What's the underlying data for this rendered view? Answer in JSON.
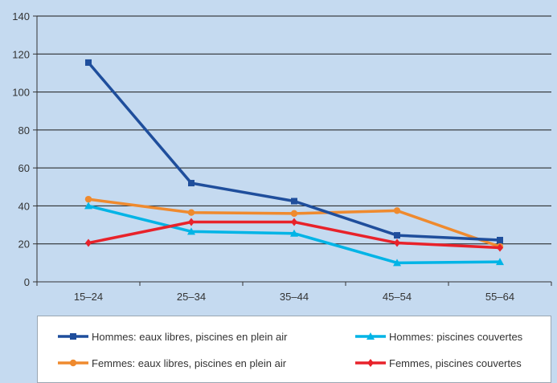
{
  "chart_data": {
    "type": "line",
    "title": "",
    "xlabel": "",
    "ylabel": "",
    "categories": [
      "15–24",
      "25–34",
      "35–44",
      "45–54",
      "55–64"
    ],
    "ylim": [
      0,
      140
    ],
    "yticks": [
      0,
      20,
      40,
      60,
      80,
      100,
      120,
      140
    ],
    "grid": "horizontal",
    "legend_position": "bottom",
    "series": [
      {
        "name": "Hommes: eaux libres, piscines en plein air",
        "color": "#1f4e9c",
        "marker": "square",
        "values": [
          115.5,
          52,
          42.5,
          24.5,
          22
        ]
      },
      {
        "name": "Hommes: piscines couvertes",
        "color": "#00b4e6",
        "marker": "triangle",
        "values": [
          40,
          26.5,
          25.5,
          10,
          10.5
        ]
      },
      {
        "name": "Femmes: eaux libres, piscines en plein air",
        "color": "#ef8a2e",
        "marker": "circle",
        "values": [
          43.5,
          36.5,
          36,
          37.5,
          18.5
        ]
      },
      {
        "name": "Femmes, piscines couvertes",
        "color": "#e8222a",
        "marker": "diamond",
        "values": [
          20.5,
          31.5,
          31.5,
          20.5,
          18
        ]
      }
    ]
  }
}
